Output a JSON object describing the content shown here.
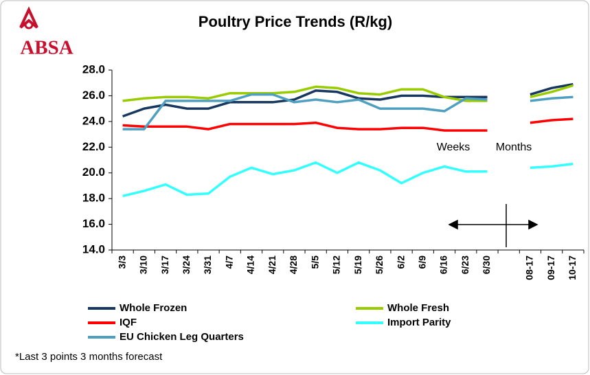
{
  "brand": "ABSA",
  "chart_data": {
    "type": "line",
    "title": "Poultry Price Trends (R/kg)",
    "categories": [
      "3/3",
      "3/10",
      "3/17",
      "3/24",
      "3/31",
      "4/7",
      "4/14",
      "4/21",
      "4/28",
      "5/5",
      "5/12",
      "5/19",
      "5/26",
      "6/2",
      "6/9",
      "6/16",
      "6/23",
      "6/30",
      null,
      "08-17",
      "09-17",
      "10-17"
    ],
    "series": [
      {
        "name": "Whole Frozen",
        "color": "#17375e",
        "values": [
          24.4,
          25.0,
          25.3,
          25.0,
          25.0,
          25.5,
          25.5,
          25.5,
          25.7,
          26.4,
          26.3,
          25.8,
          25.7,
          26.0,
          26.0,
          25.9,
          25.9,
          25.9,
          null,
          26.1,
          26.6,
          26.9
        ]
      },
      {
        "name": "Whole Fresh",
        "color": "#99cc00",
        "values": [
          25.6,
          25.8,
          25.9,
          25.9,
          25.8,
          26.2,
          26.2,
          26.2,
          26.3,
          26.7,
          26.6,
          26.2,
          26.1,
          26.5,
          26.5,
          25.9,
          25.6,
          25.6,
          null,
          25.9,
          26.3,
          26.8
        ]
      },
      {
        "name": "IQF",
        "color": "#ff0000",
        "values": [
          23.7,
          23.6,
          23.6,
          23.6,
          23.4,
          23.8,
          23.8,
          23.8,
          23.8,
          23.9,
          23.5,
          23.4,
          23.4,
          23.5,
          23.5,
          23.3,
          23.3,
          23.3,
          null,
          23.9,
          24.1,
          24.2
        ]
      },
      {
        "name": "Import Parity",
        "color": "#33ffff",
        "values": [
          18.2,
          18.6,
          19.1,
          18.3,
          18.4,
          19.7,
          20.4,
          19.9,
          20.2,
          20.8,
          20.0,
          20.8,
          20.2,
          19.2,
          20.0,
          20.5,
          20.1,
          20.1,
          null,
          20.4,
          20.5,
          20.7
        ]
      },
      {
        "name": "EU Chicken Leg Quarters",
        "color": "#4f9fc0",
        "values": [
          23.4,
          23.4,
          25.6,
          25.6,
          25.6,
          25.6,
          26.1,
          26.1,
          25.5,
          25.7,
          25.5,
          25.7,
          25.0,
          25.0,
          25.0,
          24.8,
          25.8,
          25.7,
          null,
          25.6,
          25.8,
          25.9
        ]
      }
    ],
    "ylim": [
      14,
      28
    ],
    "yticks": [
      {
        "value": 14,
        "label": "14.0"
      },
      {
        "value": 16,
        "label": "16.0"
      },
      {
        "value": 18,
        "label": "18.0"
      },
      {
        "value": 20,
        "label": "20.0"
      },
      {
        "value": 22,
        "label": "22.0"
      },
      {
        "value": 24,
        "label": "24.0"
      },
      {
        "value": 26,
        "label": "26.0"
      },
      {
        "value": 28,
        "label": "28.0"
      }
    ],
    "annotations": [
      "Weeks",
      "Months"
    ],
    "footnote": "*Last 3 points 3 months forecast"
  }
}
